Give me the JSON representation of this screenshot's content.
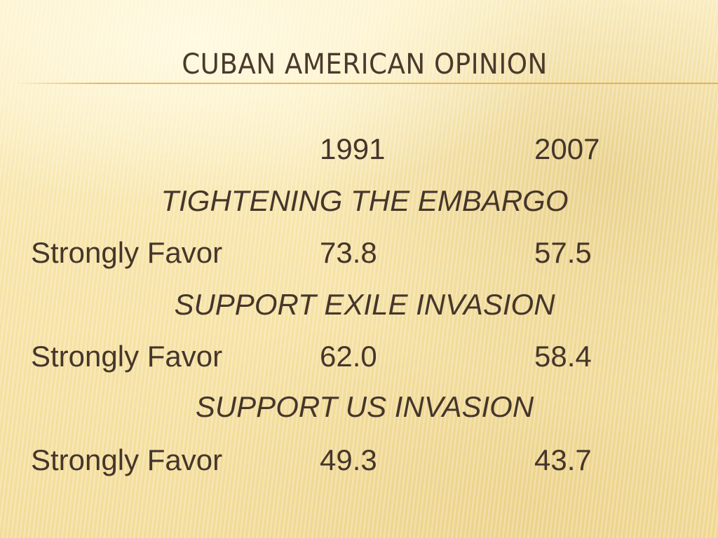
{
  "title": "CUBAN AMERICAN OPINION",
  "table": {
    "header": {
      "label": "",
      "years": [
        "1991",
        "2007"
      ]
    },
    "sections": [
      {
        "heading": "TIGHTENING THE EMBARGO",
        "row_label": "Strongly Favor",
        "values": [
          "73.8",
          "57.5"
        ]
      },
      {
        "heading": "SUPPORT EXILE INVASION",
        "row_label": "Strongly Favor",
        "values": [
          "62.0",
          "58.4"
        ]
      },
      {
        "heading": "SUPPORT US INVASION",
        "row_label": "Strongly Favor",
        "values": [
          "49.3",
          "43.7"
        ]
      }
    ]
  },
  "colors": {
    "text": "#45362b",
    "title_rule": "#e8b050",
    "background": "#f8e7ae"
  }
}
